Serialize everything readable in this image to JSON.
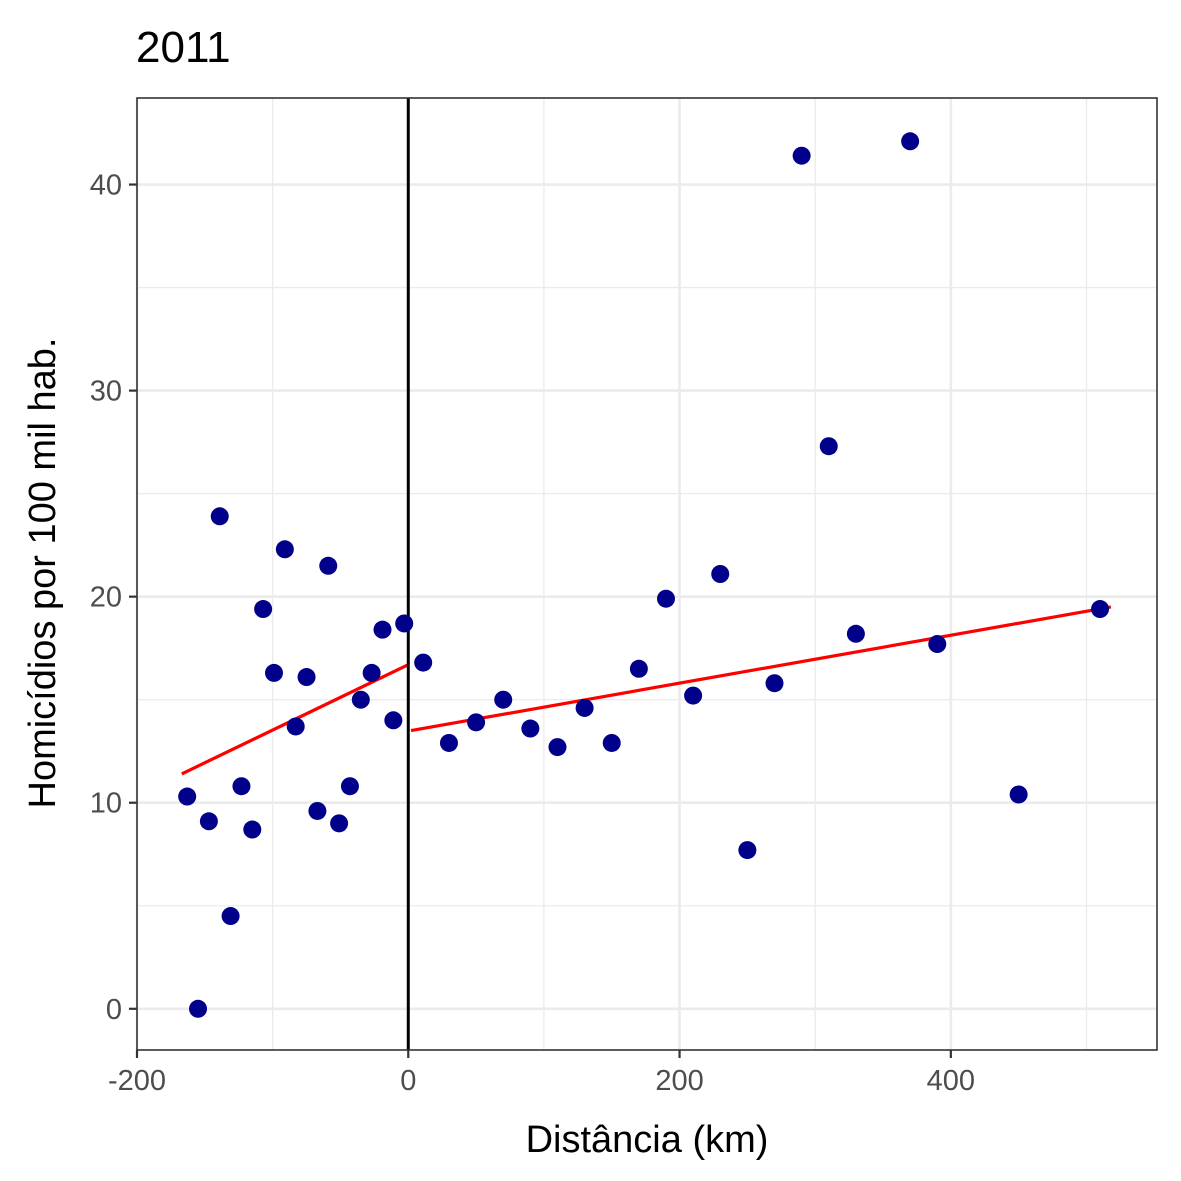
{
  "chart_data": {
    "type": "scatter",
    "title": "2011",
    "xlabel": "Distância (km)",
    "ylabel": "Homicídios por 100 mil hab.",
    "xlim": [
      -200,
      552
    ],
    "ylim": [
      -2,
      44.2
    ],
    "x_ticks": [
      -200,
      0,
      200,
      400
    ],
    "x_tick_labels": [
      "-200",
      "0",
      "200",
      "400"
    ],
    "y_ticks": [
      0,
      10,
      20,
      30,
      40
    ],
    "y_tick_labels": [
      "0",
      "10",
      "20",
      "30",
      "40"
    ],
    "grid": true,
    "cutoff": 0,
    "colors": {
      "points": "#00008B",
      "fit": "#FF0000",
      "cutoff": "#000000",
      "grid": "#EBEBEB",
      "panel_border": "#333333"
    },
    "series": [
      {
        "points": [
          [
            -163,
            10.3
          ],
          [
            -155,
            0.0
          ],
          [
            -147,
            9.1
          ],
          [
            -139,
            23.9
          ],
          [
            -131,
            4.5
          ],
          [
            -123,
            10.8
          ],
          [
            -115,
            8.7
          ],
          [
            -107,
            19.4
          ],
          [
            -99,
            16.3
          ],
          [
            -91,
            22.3
          ],
          [
            -83,
            13.7
          ],
          [
            -75,
            16.1
          ],
          [
            -67,
            9.6
          ],
          [
            -59,
            21.5
          ],
          [
            -51,
            9.0
          ],
          [
            -43,
            10.8
          ],
          [
            -35,
            15.0
          ],
          [
            -27,
            16.3
          ],
          [
            -19,
            18.4
          ],
          [
            -11,
            14.0
          ],
          [
            -3,
            18.7
          ],
          [
            11,
            16.8
          ],
          [
            30,
            12.9
          ],
          [
            50,
            13.9
          ],
          [
            70,
            15.0
          ],
          [
            90,
            13.6
          ],
          [
            110,
            12.7
          ],
          [
            130,
            14.6
          ],
          [
            150,
            12.9
          ],
          [
            170,
            16.5
          ],
          [
            190,
            19.9
          ],
          [
            210,
            15.2
          ],
          [
            230,
            21.1
          ],
          [
            250,
            7.7
          ],
          [
            270,
            15.8
          ],
          [
            290,
            41.4
          ],
          [
            310,
            27.3
          ],
          [
            330,
            18.2
          ],
          [
            370,
            42.1
          ],
          [
            390,
            17.7
          ],
          [
            450,
            10.4
          ],
          [
            510,
            19.4
          ]
        ]
      }
    ],
    "fit_lines": [
      {
        "x": [
          -167,
          0
        ],
        "y": [
          11.4,
          16.7
        ]
      },
      {
        "x": [
          2,
          518
        ],
        "y": [
          13.5,
          19.5
        ]
      }
    ]
  }
}
